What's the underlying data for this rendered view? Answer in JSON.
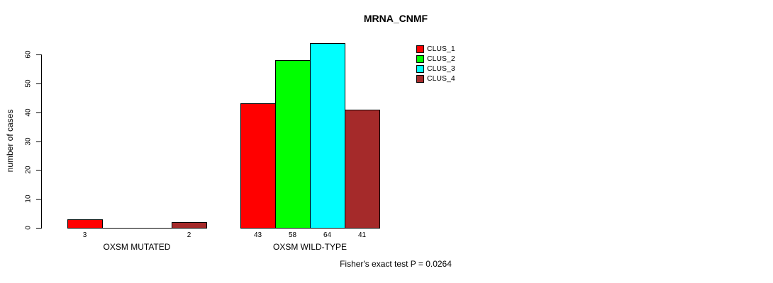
{
  "title": "MRNA_CNMF",
  "chart_data": {
    "type": "bar",
    "title": "MRNA_CNMF",
    "xlabel": "",
    "ylabel": "number of cases",
    "ylim": [
      0,
      60
    ],
    "yticks": [
      0,
      10,
      20,
      30,
      40,
      50,
      60
    ],
    "grid": false,
    "legend_position": "top-right",
    "categories": [
      "OXSM MUTATED",
      "OXSM WILD-TYPE"
    ],
    "series": [
      {
        "name": "CLUS_1",
        "color": "#FF0000",
        "values": [
          3,
          43
        ]
      },
      {
        "name": "CLUS_2",
        "color": "#00FF00",
        "values": [
          0,
          58
        ]
      },
      {
        "name": "CLUS_3",
        "color": "#00FFFF",
        "values": [
          0,
          64
        ]
      },
      {
        "name": "CLUS_4",
        "color": "#A52A2A",
        "values": [
          2,
          41
        ]
      }
    ],
    "bar_value_labels_shown_only_when_nonzero": true,
    "annotation": "Fisher's exact test P = 0.0264"
  }
}
